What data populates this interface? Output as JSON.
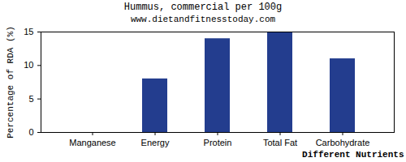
{
  "chart_data": {
    "type": "bar",
    "title": "Hummus, commercial per 100g",
    "subtitle": "www.dietandfitnesstoday.com",
    "x_label": "Different Nutrients",
    "y_label": "Percentage of RDA (%)",
    "categories": [
      "Manganese",
      "Energy",
      "Protein",
      "Total Fat",
      "Carbohydrate"
    ],
    "values": [
      0,
      8,
      14,
      15,
      11
    ],
    "color": "#233d8e",
    "ylim": [
      0,
      15
    ],
    "yticks": [
      0,
      5,
      10,
      15
    ],
    "grid": false
  }
}
